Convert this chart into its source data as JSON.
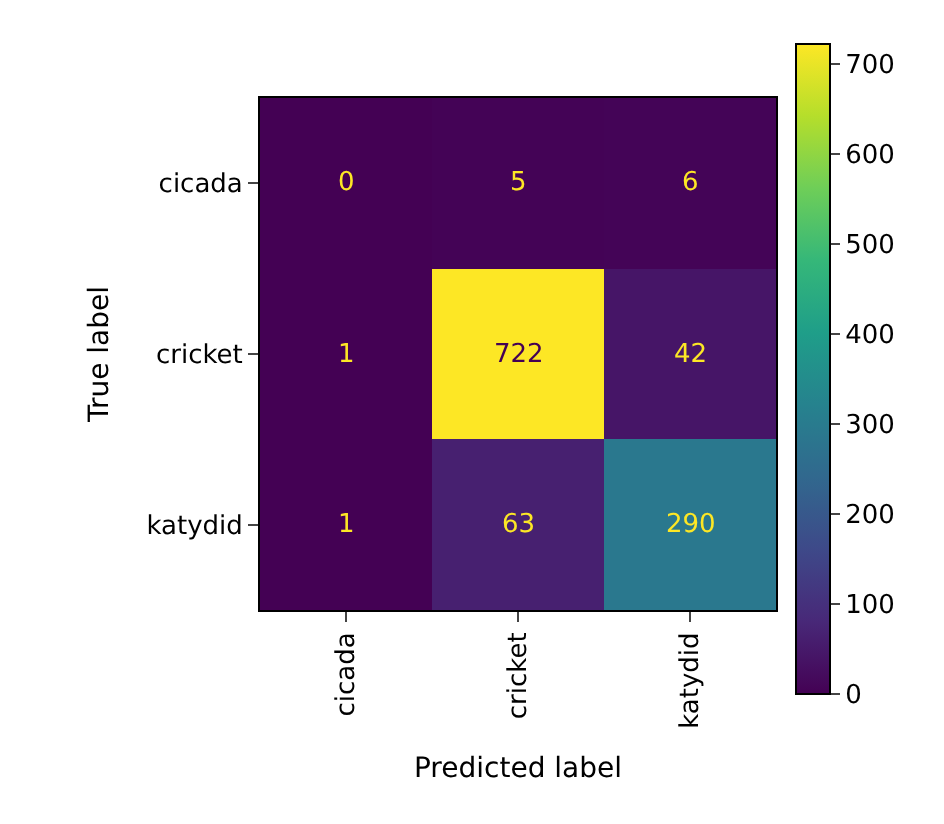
{
  "chart_data": {
    "type": "heatmap",
    "xlabel": "Predicted label",
    "ylabel": "True label",
    "categories": [
      "cicada",
      "cricket",
      "katydid"
    ],
    "y_categories": [
      "cicada",
      "cricket",
      "katydid"
    ],
    "cells": [
      [
        0,
        5,
        6
      ],
      [
        1,
        722,
        42
      ],
      [
        1,
        63,
        290
      ]
    ],
    "clim": [
      0,
      722
    ],
    "cticks": [
      0,
      100,
      200,
      300,
      400,
      500,
      600,
      700
    ],
    "data_labels": true
  }
}
